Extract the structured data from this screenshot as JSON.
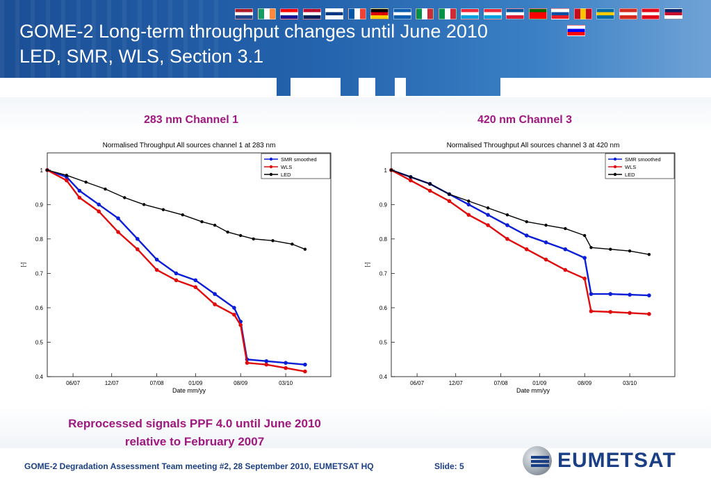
{
  "slide": {
    "title_line1": "GOME-2 Long-term throughput changes until June 2010",
    "title_line2": "LED, SMR, WLS, Section 3.1",
    "caption_line1": "Reprocessed signals PPF 4.0 until June 2010",
    "caption_line2": "relative to February 2007",
    "footer": "GOME-2 Degradation Assessment Team meeting #2, 28 September 2010, EUMETSAT HQ",
    "slide_label": "Slide: 5",
    "logo_text": "EUMETSAT",
    "flag_icons": [
      "flag-nl",
      "flag-ie",
      "flag-hr",
      "flag-no",
      "flag-fi",
      "flag-fr",
      "flag-de",
      "flag-gr",
      "flag-it",
      "flag-it2",
      "flag-lu",
      "flag-lu2",
      "flag-is",
      "flag-pt",
      "flag-sk",
      "flag-es",
      "flag-se",
      "flag-ch",
      "flag-tr",
      "flag-uk",
      "flag-si"
    ]
  },
  "colors": {
    "title": "#ffffff",
    "accent": "#a0177f",
    "brand": "#1b3f85",
    "smr": "#0a1ed8",
    "wls": "#e00b0b",
    "led": "#000000"
  },
  "chart_data": [
    {
      "type": "line",
      "heading": "283 nm Channel 1",
      "title": "Normalised Throughput All sources channel 1 at 283 nm",
      "xlabel": "Date mm/yy",
      "ylabel": "[-]",
      "xlim": [
        "2007-02",
        "2010-10"
      ],
      "ylim": [
        0.4,
        1.05
      ],
      "xticks": [
        "06/07",
        "12/07",
        "07/08",
        "01/09",
        "08/09",
        "03/10"
      ],
      "yticks": [
        0.4,
        0.5,
        0.6,
        0.7,
        0.8,
        0.9,
        1
      ],
      "legend_position": "top-right",
      "series": [
        {
          "name": "SMR smoothed",
          "x": [
            "2007-02",
            "2007-05",
            "2007-07",
            "2007-10",
            "2008-01",
            "2008-04",
            "2008-07",
            "2008-10",
            "2009-01",
            "2009-04",
            "2009-07",
            "2009-08",
            "2009-09",
            "2009-12",
            "2010-03",
            "2010-06"
          ],
          "y": [
            1.0,
            0.98,
            0.94,
            0.9,
            0.86,
            0.8,
            0.74,
            0.7,
            0.68,
            0.64,
            0.6,
            0.56,
            0.45,
            0.445,
            0.44,
            0.435
          ]
        },
        {
          "name": "WLS",
          "x": [
            "2007-02",
            "2007-05",
            "2007-07",
            "2007-10",
            "2008-01",
            "2008-04",
            "2008-07",
            "2008-10",
            "2009-01",
            "2009-04",
            "2009-07",
            "2009-08",
            "2009-09",
            "2009-12",
            "2010-03",
            "2010-06"
          ],
          "y": [
            1.0,
            0.97,
            0.92,
            0.88,
            0.82,
            0.77,
            0.71,
            0.68,
            0.66,
            0.61,
            0.58,
            0.55,
            0.44,
            0.435,
            0.425,
            0.415
          ]
        },
        {
          "name": "LED",
          "x": [
            "2007-02",
            "2007-05",
            "2007-08",
            "2007-11",
            "2008-02",
            "2008-05",
            "2008-08",
            "2008-11",
            "2009-02",
            "2009-04",
            "2009-06",
            "2009-08",
            "2009-10",
            "2010-01",
            "2010-04",
            "2010-06"
          ],
          "y": [
            1.0,
            0.985,
            0.965,
            0.945,
            0.92,
            0.9,
            0.885,
            0.87,
            0.85,
            0.84,
            0.82,
            0.81,
            0.8,
            0.795,
            0.785,
            0.77
          ]
        }
      ]
    },
    {
      "type": "line",
      "heading": "420 nm Channel 3",
      "title": "Normalised Throughput All sources channel 3 at 420 nm",
      "xlabel": "Date mm/yy",
      "ylabel": "[-]",
      "xlim": [
        "2007-02",
        "2010-10"
      ],
      "ylim": [
        0.4,
        1.05
      ],
      "xticks": [
        "06/07",
        "12/07",
        "07/08",
        "01/09",
        "08/09",
        "03/10"
      ],
      "yticks": [
        0.4,
        0.5,
        0.6,
        0.7,
        0.8,
        0.9,
        1
      ],
      "legend_position": "top-right",
      "series": [
        {
          "name": "SMR smoothed",
          "x": [
            "2007-02",
            "2007-05",
            "2007-08",
            "2007-11",
            "2008-02",
            "2008-05",
            "2008-08",
            "2008-11",
            "2009-02",
            "2009-05",
            "2009-08",
            "2009-09",
            "2009-12",
            "2010-03",
            "2010-06"
          ],
          "y": [
            1.0,
            0.98,
            0.96,
            0.93,
            0.9,
            0.87,
            0.84,
            0.81,
            0.79,
            0.77,
            0.745,
            0.64,
            0.64,
            0.638,
            0.636
          ]
        },
        {
          "name": "WLS",
          "x": [
            "2007-02",
            "2007-05",
            "2007-08",
            "2007-11",
            "2008-02",
            "2008-05",
            "2008-08",
            "2008-11",
            "2009-02",
            "2009-05",
            "2009-08",
            "2009-09",
            "2009-12",
            "2010-03",
            "2010-06"
          ],
          "y": [
            1.0,
            0.97,
            0.94,
            0.91,
            0.87,
            0.84,
            0.8,
            0.77,
            0.74,
            0.71,
            0.685,
            0.59,
            0.588,
            0.585,
            0.582
          ]
        },
        {
          "name": "LED",
          "x": [
            "2007-02",
            "2007-05",
            "2007-08",
            "2007-11",
            "2008-02",
            "2008-05",
            "2008-08",
            "2008-11",
            "2009-02",
            "2009-05",
            "2009-08",
            "2009-09",
            "2009-12",
            "2010-03",
            "2010-06"
          ],
          "y": [
            1.0,
            0.98,
            0.96,
            0.93,
            0.91,
            0.89,
            0.87,
            0.85,
            0.84,
            0.83,
            0.81,
            0.775,
            0.77,
            0.765,
            0.755
          ]
        }
      ]
    }
  ]
}
